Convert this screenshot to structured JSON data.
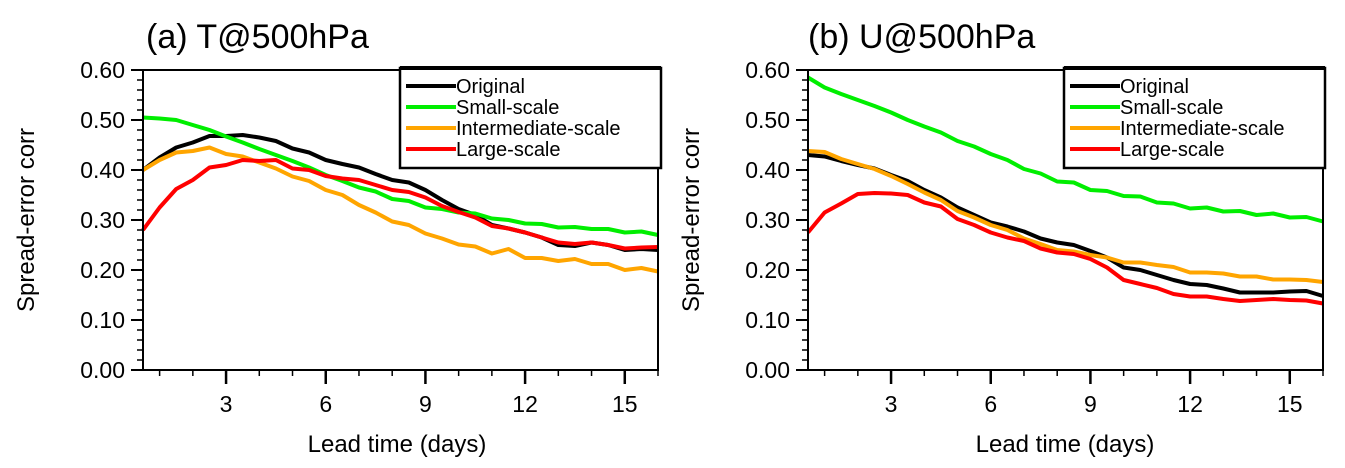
{
  "chart_data": [
    {
      "type": "line",
      "title": "(a) T@500hPa",
      "xlabel": "Lead time (days)",
      "ylabel": "Spread-error corr",
      "xlim": [
        0.5,
        16
      ],
      "ylim": [
        0.0,
        0.6
      ],
      "xticks": [
        3,
        6,
        9,
        12,
        15
      ],
      "xtick_labels": [
        "3",
        "6",
        "9",
        "12",
        "15"
      ],
      "yticks": [
        0.0,
        0.1,
        0.2,
        0.3,
        0.4,
        0.5,
        0.6
      ],
      "ytick_labels": [
        "0.00",
        "0.10",
        "0.20",
        "0.30",
        "0.40",
        "0.50",
        "0.60"
      ],
      "grid": false,
      "legend_position": "top-right",
      "x": [
        0.5,
        1,
        1.5,
        2,
        2.5,
        3,
        3.5,
        4,
        4.5,
        5,
        5.5,
        6,
        6.5,
        7,
        7.5,
        8,
        8.5,
        9,
        9.5,
        10,
        10.5,
        11,
        11.5,
        12,
        12.5,
        13,
        13.5,
        14,
        14.5,
        15,
        15.5,
        16
      ],
      "series": [
        {
          "name": "Original",
          "color": "#000000",
          "values": [
            0.4,
            0.425,
            0.445,
            0.455,
            0.468,
            0.468,
            0.47,
            0.465,
            0.458,
            0.443,
            0.435,
            0.42,
            0.412,
            0.405,
            0.392,
            0.38,
            0.375,
            0.36,
            0.34,
            0.322,
            0.31,
            0.29,
            0.283,
            0.275,
            0.265,
            0.25,
            0.248,
            0.255,
            0.25,
            0.24,
            0.242,
            0.24
          ]
        },
        {
          "name": "Small-scale",
          "color": "#00ee00",
          "values": [
            0.505,
            0.503,
            0.5,
            0.49,
            0.48,
            0.467,
            0.455,
            0.442,
            0.43,
            0.418,
            0.405,
            0.39,
            0.378,
            0.365,
            0.357,
            0.342,
            0.338,
            0.325,
            0.322,
            0.315,
            0.313,
            0.303,
            0.3,
            0.293,
            0.292,
            0.285,
            0.286,
            0.282,
            0.282,
            0.275,
            0.277,
            0.27
          ]
        },
        {
          "name": "Intermediate-scale",
          "color": "#ffa500",
          "values": [
            0.4,
            0.42,
            0.435,
            0.438,
            0.445,
            0.432,
            0.427,
            0.415,
            0.403,
            0.387,
            0.378,
            0.36,
            0.35,
            0.33,
            0.315,
            0.297,
            0.29,
            0.273,
            0.263,
            0.251,
            0.247,
            0.233,
            0.242,
            0.224,
            0.224,
            0.218,
            0.222,
            0.212,
            0.212,
            0.2,
            0.204,
            0.197
          ]
        },
        {
          "name": "Large-scale",
          "color": "#ff0000",
          "values": [
            0.28,
            0.325,
            0.362,
            0.38,
            0.405,
            0.41,
            0.42,
            0.418,
            0.42,
            0.403,
            0.4,
            0.388,
            0.383,
            0.38,
            0.37,
            0.36,
            0.356,
            0.345,
            0.328,
            0.316,
            0.305,
            0.288,
            0.283,
            0.275,
            0.265,
            0.255,
            0.252,
            0.255,
            0.25,
            0.243,
            0.245,
            0.246
          ]
        }
      ]
    },
    {
      "type": "line",
      "title": "(b) U@500hPa",
      "xlabel": "Lead time (days)",
      "ylabel": "Spread-error corr",
      "xlim": [
        0.5,
        16
      ],
      "ylim": [
        0.0,
        0.6
      ],
      "xticks": [
        3,
        6,
        9,
        12,
        15
      ],
      "xtick_labels": [
        "3",
        "6",
        "9",
        "12",
        "15"
      ],
      "yticks": [
        0.0,
        0.1,
        0.2,
        0.3,
        0.4,
        0.5,
        0.6
      ],
      "ytick_labels": [
        "0.00",
        "0.10",
        "0.20",
        "0.30",
        "0.40",
        "0.50",
        "0.60"
      ],
      "grid": false,
      "legend_position": "top-right",
      "x": [
        0.5,
        1,
        1.5,
        2,
        2.5,
        3,
        3.5,
        4,
        4.5,
        5,
        5.5,
        6,
        6.5,
        7,
        7.5,
        8,
        8.5,
        9,
        9.5,
        10,
        10.5,
        11,
        11.5,
        12,
        12.5,
        13,
        13.5,
        14,
        14.5,
        15,
        15.5,
        16
      ],
      "series": [
        {
          "name": "Original",
          "color": "#000000",
          "values": [
            0.43,
            0.427,
            0.418,
            0.41,
            0.403,
            0.39,
            0.378,
            0.36,
            0.345,
            0.325,
            0.31,
            0.295,
            0.287,
            0.277,
            0.263,
            0.255,
            0.25,
            0.238,
            0.225,
            0.205,
            0.2,
            0.19,
            0.18,
            0.172,
            0.17,
            0.163,
            0.155,
            0.155,
            0.155,
            0.157,
            0.158,
            0.148
          ]
        },
        {
          "name": "Small-scale",
          "color": "#00ee00",
          "values": [
            0.585,
            0.565,
            0.552,
            0.54,
            0.528,
            0.515,
            0.5,
            0.487,
            0.475,
            0.458,
            0.447,
            0.432,
            0.42,
            0.402,
            0.393,
            0.377,
            0.375,
            0.36,
            0.358,
            0.348,
            0.347,
            0.335,
            0.333,
            0.323,
            0.325,
            0.317,
            0.318,
            0.31,
            0.313,
            0.305,
            0.306,
            0.297
          ]
        },
        {
          "name": "Intermediate-scale",
          "color": "#ffa500",
          "values": [
            0.438,
            0.436,
            0.422,
            0.412,
            0.402,
            0.388,
            0.372,
            0.355,
            0.34,
            0.318,
            0.305,
            0.29,
            0.28,
            0.263,
            0.252,
            0.24,
            0.237,
            0.23,
            0.225,
            0.215,
            0.215,
            0.21,
            0.206,
            0.195,
            0.195,
            0.193,
            0.187,
            0.187,
            0.181,
            0.181,
            0.18,
            0.176
          ]
        },
        {
          "name": "Large-scale",
          "color": "#ff0000",
          "values": [
            0.275,
            0.315,
            0.333,
            0.352,
            0.354,
            0.353,
            0.35,
            0.335,
            0.327,
            0.302,
            0.29,
            0.275,
            0.265,
            0.258,
            0.243,
            0.235,
            0.232,
            0.222,
            0.205,
            0.18,
            0.172,
            0.164,
            0.152,
            0.147,
            0.147,
            0.142,
            0.138,
            0.14,
            0.142,
            0.14,
            0.139,
            0.133
          ]
        }
      ]
    }
  ]
}
